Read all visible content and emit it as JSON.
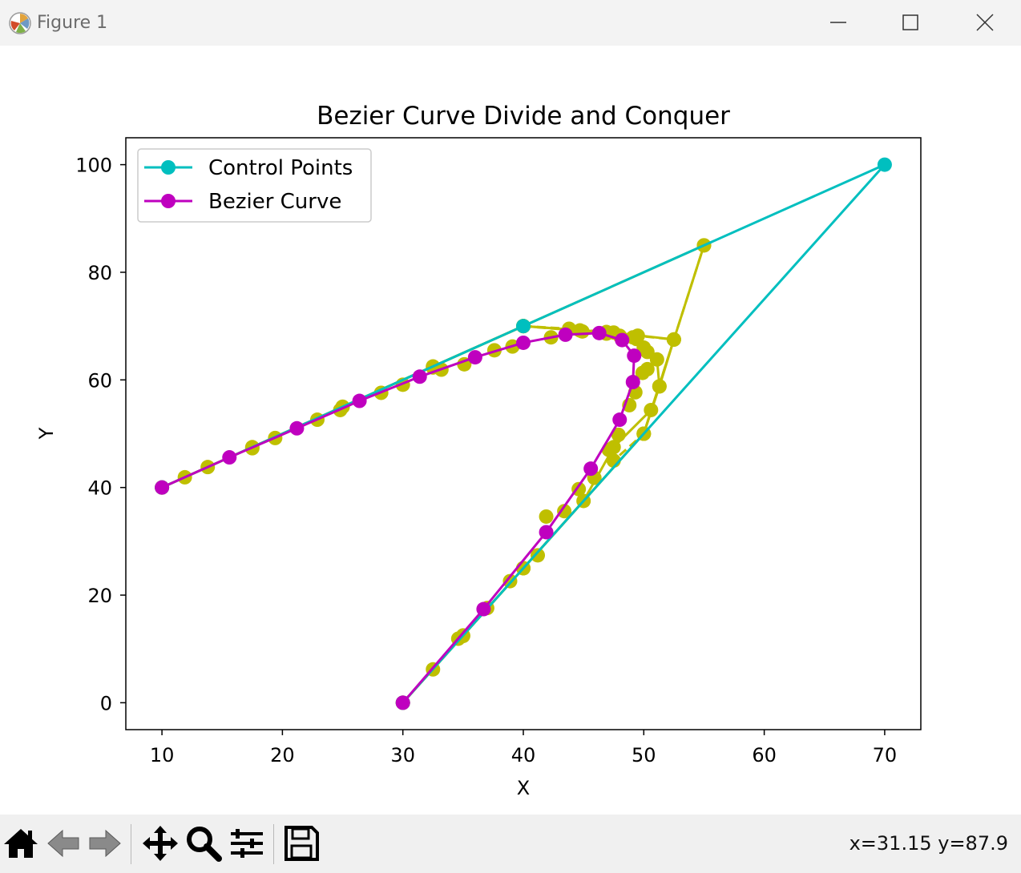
{
  "window": {
    "title": "Figure 1"
  },
  "toolbar": {
    "buttons": [
      "home-icon",
      "back-icon",
      "forward-icon",
      "pan-icon",
      "zoom-icon",
      "configure-subplots-icon",
      "save-icon"
    ],
    "coords_text": "x=31.15 y=87.9"
  },
  "colors": {
    "control": "#00bfbf",
    "bezier": "#bf00bf",
    "intermediate": "#bfbf00"
  },
  "chart_data": {
    "type": "line",
    "title": "Bezier Curve Divide and Conquer",
    "xlabel": "X",
    "ylabel": "Y",
    "xlim": [
      7,
      73
    ],
    "ylim": [
      -5,
      105
    ],
    "xticks": [
      10,
      20,
      30,
      40,
      50,
      60,
      70
    ],
    "yticks": [
      0,
      20,
      40,
      60,
      80,
      100
    ],
    "grid": false,
    "legend": {
      "position": "upper-left",
      "entries": [
        "Control Points",
        "Bezier Curve"
      ]
    },
    "series": [
      {
        "name": "Control Points",
        "style": "line-marker",
        "points": [
          [
            10,
            40
          ],
          [
            40,
            70
          ],
          [
            70,
            100
          ],
          [
            30,
            0
          ]
        ]
      },
      {
        "name": "Bezier Curve",
        "style": "line-marker",
        "points": [
          [
            10,
            40
          ],
          [
            15.6,
            45.6
          ],
          [
            21.2,
            51.0
          ],
          [
            26.4,
            56.1
          ],
          [
            31.4,
            60.6
          ],
          [
            36.0,
            64.2
          ],
          [
            40.0,
            66.9
          ],
          [
            43.5,
            68.4
          ],
          [
            46.3,
            68.7
          ],
          [
            48.2,
            67.4
          ],
          [
            49.2,
            64.5
          ],
          [
            49.1,
            59.6
          ],
          [
            48.0,
            52.6
          ],
          [
            45.6,
            43.5
          ],
          [
            41.9,
            31.7
          ],
          [
            36.7,
            17.4
          ],
          [
            30,
            0
          ]
        ]
      }
    ],
    "intermediate": {
      "solid": [
        [
          [
            10,
            40
          ],
          [
            40,
            70
          ],
          [
            55,
            85
          ],
          [
            52.5,
            67.5
          ],
          [
            50,
            50
          ],
          [
            30,
            0
          ]
        ],
        [
          [
            10,
            40
          ],
          [
            25,
            55
          ],
          [
            40,
            70
          ],
          [
            47.5,
            68.8
          ],
          [
            52.5,
            67.5
          ],
          [
            51.3,
            58.8
          ],
          [
            50,
            50
          ],
          [
            40,
            25
          ],
          [
            30,
            0
          ]
        ],
        [
          [
            10,
            40
          ],
          [
            17.5,
            47.5
          ],
          [
            25,
            55
          ],
          [
            32.5,
            62.5
          ],
          [
            40,
            70
          ],
          [
            44.7,
            69.2
          ],
          [
            49.1,
            67.9
          ],
          [
            51.1,
            63.8
          ],
          [
            51.3,
            58.8
          ],
          [
            50.6,
            54.4
          ],
          [
            47.5,
            47.5
          ],
          [
            45,
            37.5
          ],
          [
            40,
            25
          ],
          [
            35,
            12.5
          ],
          [
            30,
            0
          ]
        ],
        [
          [
            11.9,
            41.9
          ],
          [
            13.8,
            43.8
          ],
          [
            17.5,
            47.3
          ],
          [
            19.4,
            49.2
          ],
          [
            22.9,
            52.6
          ],
          [
            24.8,
            54.4
          ],
          [
            28.2,
            57.6
          ],
          [
            30.0,
            59.1
          ],
          [
            32.5,
            62.3
          ],
          [
            33.2,
            61.9
          ],
          [
            35.1,
            62.9
          ],
          [
            37.6,
            65.5
          ],
          [
            39.1,
            66.2
          ],
          [
            42.3,
            67.9
          ],
          [
            44.9,
            69.0
          ],
          [
            46.9,
            68.6
          ],
          [
            48.0,
            68.2
          ],
          [
            49.4,
            67.6
          ],
          [
            50.0,
            66.0
          ],
          [
            50.3,
            65.2
          ],
          [
            50.3,
            62.0
          ],
          [
            49.9,
            61.3
          ],
          [
            49.3,
            57.7
          ],
          [
            48.8,
            55.3
          ],
          [
            47.9,
            49.8
          ],
          [
            47.1,
            47.0
          ],
          [
            45.9,
            41.8
          ],
          [
            44.6,
            39.7
          ],
          [
            43.4,
            35.6
          ],
          [
            41.9,
            34.6
          ],
          [
            41.2,
            27.4
          ],
          [
            40.0,
            25.0
          ],
          [
            38.9,
            22.6
          ],
          [
            37.0,
            17.6
          ],
          [
            35.0,
            12.4
          ],
          [
            34.6,
            11.9
          ],
          [
            32.5,
            6.2
          ]
        ]
      ],
      "dashed": [
        [
          [
            40,
            70
          ],
          [
            49.5,
            68.2
          ],
          [
            52.5,
            67.5
          ],
          [
            55,
            85
          ]
        ],
        [
          [
            52.5,
            67.5
          ],
          [
            50,
            50
          ],
          [
            47.5,
            45
          ]
        ],
        [
          [
            40,
            70
          ],
          [
            43.8,
            69.5
          ],
          [
            46.9,
            68.9
          ],
          [
            49.5,
            68.2
          ]
        ]
      ]
    }
  }
}
